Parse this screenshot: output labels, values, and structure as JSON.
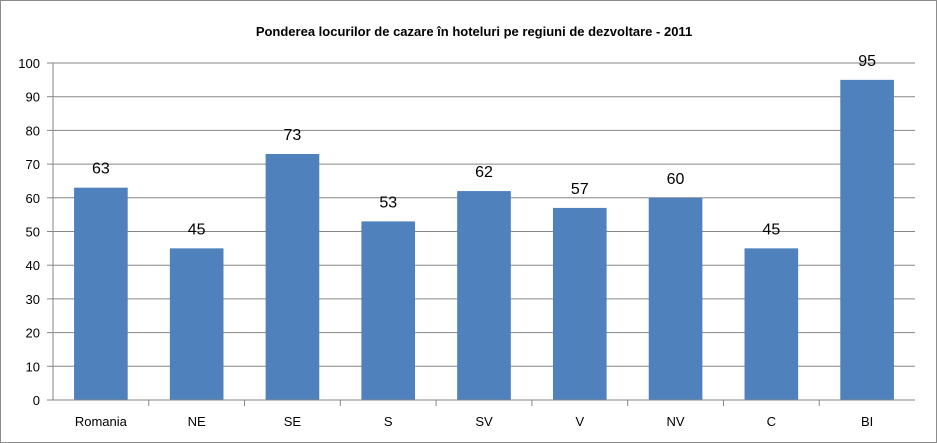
{
  "chart_data": {
    "type": "bar",
    "title": "Ponderea locurilor de cazare în hoteluri pe regiuni de dezvoltare - 2011",
    "categories": [
      "Romania",
      "NE",
      "SE",
      "S",
      "SV",
      "V",
      "NV",
      "C",
      "BI"
    ],
    "values": [
      63,
      45,
      73,
      53,
      62,
      57,
      60,
      45,
      95
    ],
    "data_labels": [
      "63",
      "45",
      "73",
      "53",
      "62",
      "57",
      "60",
      "45",
      "95"
    ],
    "y_ticks": [
      "0",
      "10",
      "20",
      "30",
      "40",
      "50",
      "60",
      "70",
      "80",
      "90",
      "100"
    ],
    "ylim": [
      0,
      100
    ],
    "grid": true,
    "legend": "none",
    "bar_color": "#4f81bd",
    "grid_color": "#868686"
  }
}
